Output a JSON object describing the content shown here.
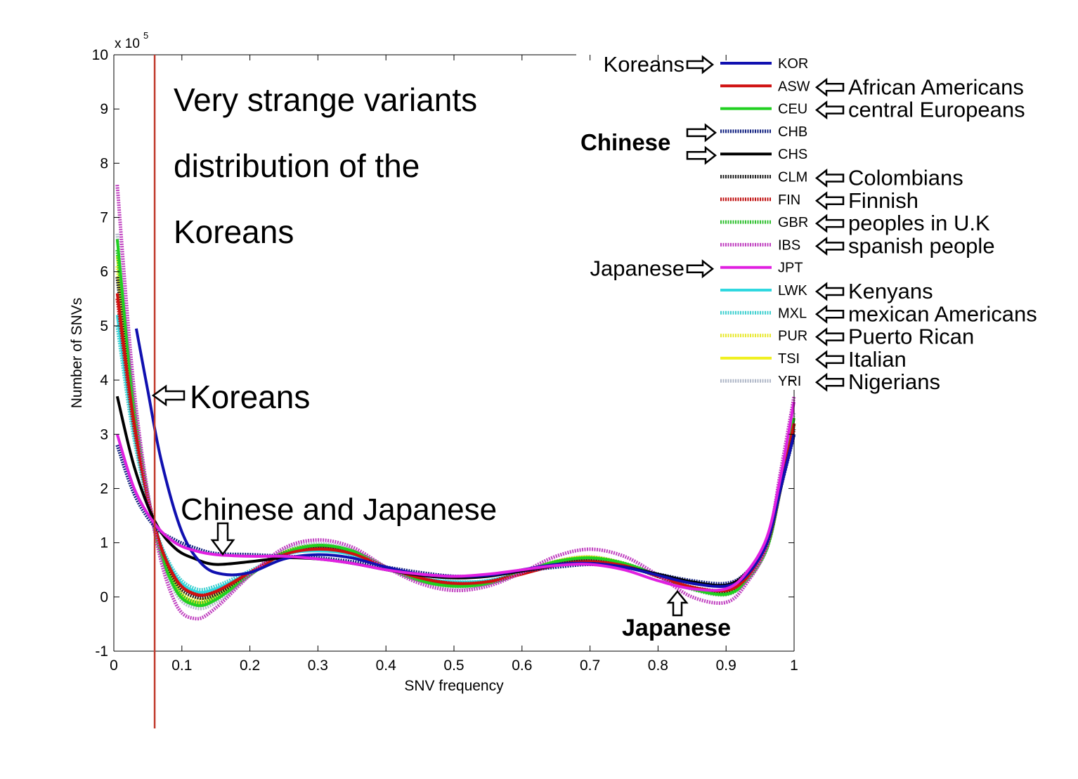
{
  "chart_data": {
    "type": "line",
    "xlabel": "SNV frequency",
    "ylabel": "Number of SNVs",
    "y_exponent_label": "x 10",
    "y_exponent_power": "5",
    "xlim": [
      0,
      1
    ],
    "ylim": [
      -1,
      10
    ],
    "x_ticks": [
      "0",
      "0.1",
      "0.2",
      "0.3",
      "0.4",
      "0.5",
      "0.6",
      "0.7",
      "0.8",
      "0.9",
      "1"
    ],
    "y_ticks": [
      "-1",
      "0",
      "1",
      "2",
      "3",
      "4",
      "5",
      "6",
      "7",
      "8",
      "9",
      "10"
    ],
    "grid": false,
    "legend_position": "top-right",
    "vertical_marker_x": 0.06,
    "vertical_marker_color": "#c0392b",
    "series": [
      {
        "name": "KOR",
        "color": "#1010b0",
        "dotted": false,
        "x": [
          0.033,
          0.05,
          0.07,
          0.1,
          0.13,
          0.16,
          0.2,
          0.25,
          0.3,
          0.35,
          0.4,
          0.45,
          0.5,
          0.55,
          0.6,
          0.65,
          0.7,
          0.75,
          0.8,
          0.85,
          0.9,
          0.93,
          0.96,
          0.98,
          1.0
        ],
        "y": [
          4.95,
          3.8,
          2.5,
          1.2,
          0.6,
          0.42,
          0.45,
          0.7,
          0.78,
          0.72,
          0.55,
          0.42,
          0.38,
          0.4,
          0.5,
          0.6,
          0.62,
          0.55,
          0.4,
          0.25,
          0.2,
          0.4,
          1.0,
          2.0,
          3.0
        ]
      },
      {
        "name": "ASW",
        "color": "#d01010",
        "dotted": false,
        "x": [
          0.005,
          0.03,
          0.06,
          0.09,
          0.12,
          0.15,
          0.2,
          0.25,
          0.3,
          0.35,
          0.4,
          0.45,
          0.5,
          0.55,
          0.6,
          0.65,
          0.7,
          0.75,
          0.8,
          0.85,
          0.9,
          0.93,
          0.96,
          0.98,
          1.0
        ],
        "y": [
          5.6,
          3.2,
          1.3,
          0.35,
          0.05,
          0.1,
          0.45,
          0.78,
          0.88,
          0.8,
          0.55,
          0.35,
          0.25,
          0.28,
          0.42,
          0.58,
          0.65,
          0.58,
          0.38,
          0.18,
          0.12,
          0.35,
          0.95,
          2.0,
          3.2
        ]
      },
      {
        "name": "CEU",
        "color": "#20d020",
        "dotted": false,
        "x": [
          0.005,
          0.03,
          0.06,
          0.09,
          0.12,
          0.15,
          0.2,
          0.25,
          0.3,
          0.35,
          0.4,
          0.45,
          0.5,
          0.55,
          0.6,
          0.65,
          0.7,
          0.75,
          0.8,
          0.85,
          0.9,
          0.93,
          0.96,
          0.98,
          1.0
        ],
        "y": [
          6.6,
          3.5,
          1.25,
          0.15,
          -0.15,
          -0.05,
          0.4,
          0.8,
          0.95,
          0.85,
          0.55,
          0.3,
          0.2,
          0.25,
          0.45,
          0.65,
          0.72,
          0.62,
          0.4,
          0.15,
          0.05,
          0.3,
          0.9,
          2.0,
          3.3
        ]
      },
      {
        "name": "CHB",
        "color": "#102080",
        "dotted": true,
        "x": [
          0.005,
          0.03,
          0.06,
          0.09,
          0.12,
          0.15,
          0.2,
          0.25,
          0.3,
          0.35,
          0.4,
          0.45,
          0.5,
          0.55,
          0.6,
          0.65,
          0.7,
          0.75,
          0.8,
          0.85,
          0.9,
          0.93,
          0.96,
          0.98,
          1.0
        ],
        "y": [
          2.8,
          1.9,
          1.3,
          1.05,
          0.9,
          0.8,
          0.78,
          0.75,
          0.72,
          0.65,
          0.55,
          0.45,
          0.38,
          0.4,
          0.48,
          0.55,
          0.6,
          0.55,
          0.42,
          0.3,
          0.25,
          0.45,
          1.0,
          2.0,
          3.0
        ]
      },
      {
        "name": "CHS",
        "color": "#000000",
        "dotted": false,
        "x": [
          0.005,
          0.03,
          0.06,
          0.09,
          0.12,
          0.15,
          0.2,
          0.25,
          0.3,
          0.35,
          0.4,
          0.45,
          0.5,
          0.55,
          0.6,
          0.65,
          0.7,
          0.75,
          0.8,
          0.85,
          0.9,
          0.93,
          0.96,
          0.98,
          1.0
        ],
        "y": [
          3.7,
          2.4,
          1.4,
          0.9,
          0.7,
          0.6,
          0.65,
          0.72,
          0.7,
          0.62,
          0.5,
          0.4,
          0.35,
          0.38,
          0.48,
          0.58,
          0.62,
          0.55,
          0.42,
          0.28,
          0.22,
          0.45,
          1.0,
          2.0,
          3.0
        ]
      },
      {
        "name": "CLM",
        "color": "#222222",
        "dotted": true,
        "x": [
          0.005,
          0.03,
          0.06,
          0.09,
          0.12,
          0.15,
          0.2,
          0.25,
          0.3,
          0.35,
          0.4,
          0.45,
          0.5,
          0.55,
          0.6,
          0.65,
          0.7,
          0.75,
          0.8,
          0.85,
          0.9,
          0.93,
          0.96,
          0.98,
          1.0
        ],
        "y": [
          5.9,
          3.3,
          1.3,
          0.3,
          0.0,
          0.05,
          0.42,
          0.8,
          0.9,
          0.82,
          0.55,
          0.33,
          0.22,
          0.26,
          0.44,
          0.62,
          0.7,
          0.6,
          0.38,
          0.16,
          0.1,
          0.32,
          0.92,
          2.0,
          3.2
        ]
      },
      {
        "name": "FIN",
        "color": "#c01010",
        "dotted": true,
        "x": [
          0.005,
          0.03,
          0.06,
          0.09,
          0.12,
          0.15,
          0.2,
          0.25,
          0.3,
          0.35,
          0.4,
          0.45,
          0.5,
          0.55,
          0.6,
          0.65,
          0.7,
          0.75,
          0.8,
          0.85,
          0.9,
          0.93,
          0.96,
          0.98,
          1.0
        ],
        "y": [
          5.5,
          3.1,
          1.3,
          0.35,
          0.05,
          0.1,
          0.45,
          0.8,
          0.9,
          0.82,
          0.55,
          0.35,
          0.25,
          0.28,
          0.45,
          0.62,
          0.68,
          0.6,
          0.38,
          0.18,
          0.12,
          0.35,
          0.95,
          2.0,
          3.1
        ]
      },
      {
        "name": "GBR",
        "color": "#30c030",
        "dotted": true,
        "x": [
          0.005,
          0.03,
          0.06,
          0.09,
          0.12,
          0.15,
          0.2,
          0.25,
          0.3,
          0.35,
          0.4,
          0.45,
          0.5,
          0.55,
          0.6,
          0.65,
          0.7,
          0.75,
          0.8,
          0.85,
          0.9,
          0.93,
          0.96,
          0.98,
          1.0
        ],
        "y": [
          6.4,
          3.4,
          1.25,
          0.2,
          -0.1,
          0.0,
          0.42,
          0.82,
          0.95,
          0.85,
          0.55,
          0.3,
          0.2,
          0.25,
          0.45,
          0.65,
          0.72,
          0.62,
          0.4,
          0.15,
          0.05,
          0.3,
          0.9,
          2.0,
          3.2
        ]
      },
      {
        "name": "IBS",
        "color": "#c040c0",
        "dotted": true,
        "x": [
          0.005,
          0.03,
          0.06,
          0.09,
          0.12,
          0.15,
          0.2,
          0.25,
          0.3,
          0.35,
          0.4,
          0.45,
          0.5,
          0.55,
          0.6,
          0.65,
          0.7,
          0.75,
          0.8,
          0.85,
          0.9,
          0.93,
          0.96,
          0.98,
          1.0
        ],
        "y": [
          7.6,
          3.8,
          1.2,
          -0.1,
          -0.4,
          -0.2,
          0.4,
          0.9,
          1.05,
          0.92,
          0.55,
          0.25,
          0.12,
          0.2,
          0.45,
          0.75,
          0.88,
          0.75,
          0.4,
          0.0,
          -0.1,
          0.25,
          0.95,
          2.3,
          3.7
        ]
      },
      {
        "name": "JPT",
        "color": "#e020e0",
        "dotted": false,
        "x": [
          0.005,
          0.03,
          0.06,
          0.09,
          0.12,
          0.15,
          0.2,
          0.25,
          0.3,
          0.35,
          0.4,
          0.45,
          0.5,
          0.55,
          0.6,
          0.65,
          0.7,
          0.75,
          0.8,
          0.85,
          0.9,
          0.93,
          0.96,
          0.98,
          1.0
        ],
        "y": [
          3.0,
          2.0,
          1.35,
          1.0,
          0.85,
          0.78,
          0.75,
          0.75,
          0.7,
          0.62,
          0.5,
          0.42,
          0.38,
          0.42,
          0.5,
          0.58,
          0.6,
          0.5,
          0.3,
          0.15,
          0.15,
          0.45,
          1.1,
          2.2,
          3.6
        ]
      },
      {
        "name": "LWK",
        "color": "#30d8e0",
        "dotted": false,
        "x": [
          0.005,
          0.03,
          0.06,
          0.09,
          0.12,
          0.15,
          0.2,
          0.25,
          0.3,
          0.35,
          0.4,
          0.45,
          0.5,
          0.55,
          0.6,
          0.65,
          0.7,
          0.75,
          0.8,
          0.85,
          0.9,
          0.93,
          0.96,
          0.98,
          1.0
        ],
        "y": [
          5.2,
          3.0,
          1.3,
          0.4,
          0.1,
          0.15,
          0.45,
          0.78,
          0.85,
          0.78,
          0.55,
          0.35,
          0.28,
          0.3,
          0.45,
          0.6,
          0.66,
          0.58,
          0.38,
          0.18,
          0.12,
          0.35,
          0.95,
          2.0,
          3.1
        ]
      },
      {
        "name": "MXL",
        "color": "#40d0d0",
        "dotted": true,
        "x": [
          0.005,
          0.03,
          0.06,
          0.09,
          0.12,
          0.15,
          0.2,
          0.25,
          0.3,
          0.35,
          0.4,
          0.45,
          0.5,
          0.55,
          0.6,
          0.65,
          0.7,
          0.75,
          0.8,
          0.85,
          0.9,
          0.93,
          0.96,
          0.98,
          1.0
        ],
        "y": [
          5.0,
          2.9,
          1.3,
          0.45,
          0.15,
          0.2,
          0.48,
          0.78,
          0.86,
          0.78,
          0.55,
          0.35,
          0.28,
          0.3,
          0.45,
          0.6,
          0.66,
          0.58,
          0.38,
          0.18,
          0.12,
          0.35,
          0.95,
          2.0,
          3.0
        ]
      },
      {
        "name": "PUR",
        "color": "#e8e830",
        "dotted": true,
        "x": [
          0.005,
          0.03,
          0.06,
          0.09,
          0.12,
          0.15,
          0.2,
          0.25,
          0.3,
          0.35,
          0.4,
          0.45,
          0.5,
          0.55,
          0.6,
          0.65,
          0.7,
          0.75,
          0.8,
          0.85,
          0.9,
          0.93,
          0.96,
          0.98,
          1.0
        ],
        "y": [
          6.1,
          3.3,
          1.28,
          0.25,
          -0.05,
          0.05,
          0.42,
          0.8,
          0.92,
          0.83,
          0.55,
          0.32,
          0.22,
          0.26,
          0.45,
          0.64,
          0.72,
          0.62,
          0.4,
          0.16,
          0.08,
          0.32,
          0.92,
          2.0,
          3.2
        ]
      },
      {
        "name": "TSI",
        "color": "#f0f020",
        "dotted": false,
        "x": [
          0.005,
          0.03,
          0.06,
          0.09,
          0.12,
          0.15,
          0.2,
          0.25,
          0.3,
          0.35,
          0.4,
          0.45,
          0.5,
          0.55,
          0.6,
          0.65,
          0.7,
          0.75,
          0.8,
          0.85,
          0.9,
          0.93,
          0.96,
          0.98,
          1.0
        ],
        "y": [
          6.3,
          3.4,
          1.25,
          0.2,
          -0.1,
          0.0,
          0.42,
          0.82,
          0.95,
          0.85,
          0.55,
          0.3,
          0.2,
          0.25,
          0.45,
          0.66,
          0.74,
          0.62,
          0.4,
          0.15,
          0.05,
          0.3,
          0.9,
          2.0,
          3.3
        ]
      },
      {
        "name": "YRI",
        "color": "#b0b8c8",
        "dotted": true,
        "x": [
          0.005,
          0.03,
          0.06,
          0.09,
          0.12,
          0.15,
          0.2,
          0.25,
          0.3,
          0.35,
          0.4,
          0.45,
          0.5,
          0.55,
          0.6,
          0.65,
          0.7,
          0.75,
          0.8,
          0.85,
          0.9,
          0.93,
          0.96,
          0.98,
          1.0
        ],
        "y": [
          6.7,
          3.6,
          1.22,
          0.1,
          -0.2,
          -0.1,
          0.4,
          0.85,
          0.98,
          0.86,
          0.55,
          0.3,
          0.18,
          0.24,
          0.45,
          0.66,
          0.74,
          0.62,
          0.4,
          0.14,
          0.04,
          0.3,
          0.9,
          2.0,
          3.4
        ]
      }
    ],
    "legend_annotations": [
      {
        "code": "KOR",
        "left_label": "Koreans",
        "right_label": ""
      },
      {
        "code": "ASW",
        "left_label": "",
        "right_label": "African Americans"
      },
      {
        "code": "CEU",
        "left_label": "",
        "right_label": "central Europeans"
      },
      {
        "code": "CHB",
        "left_label": "",
        "right_label": ""
      },
      {
        "code": "CHS",
        "left_label": "",
        "right_label": ""
      },
      {
        "code": "CLM",
        "left_label": "",
        "right_label": "Colombians"
      },
      {
        "code": "FIN",
        "left_label": "",
        "right_label": "Finnish"
      },
      {
        "code": "GBR",
        "left_label": "",
        "right_label": "peoples in U.K"
      },
      {
        "code": "IBS",
        "left_label": "",
        "right_label": "spanish people"
      },
      {
        "code": "JPT",
        "left_label": "Japanese",
        "right_label": ""
      },
      {
        "code": "LWK",
        "left_label": "",
        "right_label": "Kenyans"
      },
      {
        "code": "MXL",
        "left_label": "",
        "right_label": "mexican Americans"
      },
      {
        "code": "PUR",
        "left_label": "",
        "right_label": "Puerto Rican"
      },
      {
        "code": "TSI",
        "left_label": "",
        "right_label": "Italian"
      },
      {
        "code": "YRI",
        "left_label": "",
        "right_label": "Nigerians"
      }
    ],
    "legend_group_label": "Chinese",
    "annotations": {
      "headline": [
        "Very strange variants",
        "distribution of the",
        "Koreans"
      ],
      "koreans_marker": "Koreans",
      "chinese_japanese": "Chinese and Japanese",
      "japanese_bottom": "Japanese"
    }
  }
}
